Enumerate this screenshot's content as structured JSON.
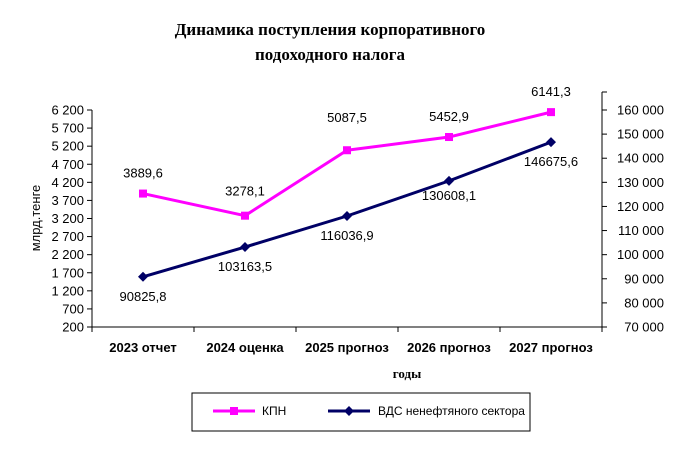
{
  "chart_data": {
    "type": "line",
    "title_line1": "Динамика поступления корпоративного",
    "title_line2": "подоходного налога",
    "xlabel": "годы",
    "ylabel": "млрд.тенге",
    "categories": [
      "2023 отчет",
      "2024 оценка",
      "2025 прогноз",
      "2026 прогноз",
      "2027 прогноз"
    ],
    "left_axis": {
      "min": 200,
      "max": 6200,
      "step": 500,
      "tick_labels": [
        "200",
        "700",
        "1 200",
        "1 700",
        "2 200",
        "2 700",
        "3 200",
        "3 700",
        "4 200",
        "4 700",
        "5 200",
        "5 700",
        "6 200"
      ]
    },
    "right_axis": {
      "min": 70000,
      "max": 160000,
      "step": 10000,
      "tick_labels": [
        "70 000",
        "80 000",
        "90 000",
        "100 000",
        "110 000",
        "120 000",
        "130 000",
        "140 000",
        "150 000",
        "160 000"
      ]
    },
    "series": [
      {
        "name": "КПН",
        "axis": "left",
        "color": "#FF00FF",
        "marker": "square",
        "values": [
          3889.6,
          3278.1,
          5087.5,
          5452.9,
          6141.3
        ],
        "labels": [
          "3889,6",
          "3278,1",
          "5087,5",
          "5452,9",
          "6141,3"
        ]
      },
      {
        "name": "ВДС ненефтяного  сектора",
        "axis": "right",
        "color": "#000066",
        "marker": "diamond",
        "values": [
          90825.8,
          103163.5,
          116036.9,
          130608.1,
          146675.6
        ],
        "labels": [
          "90825,8",
          "103163,5",
          "116036,9",
          "130608,1",
          "146675,6"
        ]
      }
    ],
    "legend_position": "bottom",
    "grid": false
  }
}
